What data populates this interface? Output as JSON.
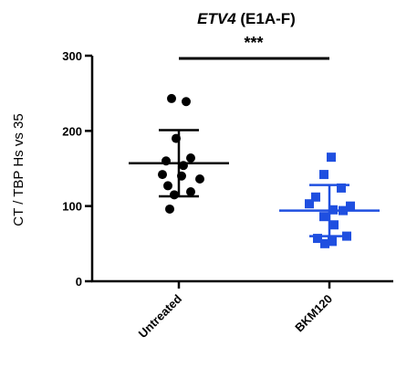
{
  "chart_data": {
    "type": "scatter",
    "title_gene": "ETV4",
    "title_suffix": " (E1A-F)",
    "xlabel": "",
    "ylabel": "CT / TBP Hs vs 35",
    "ylim": [
      0,
      300
    ],
    "yticks": [
      0,
      100,
      200,
      300
    ],
    "categories": [
      "Untreated",
      "BKM120"
    ],
    "series": [
      {
        "category": "Untreated",
        "color": "#000000",
        "marker": "circle",
        "values": [
          243,
          239,
          190,
          164,
          160,
          154,
          142,
          140,
          136,
          127,
          119,
          115,
          96
        ],
        "mean": 157,
        "sd": 44
      },
      {
        "category": "BKM120",
        "color": "#1f4fe0",
        "marker": "square",
        "values": [
          165,
          142,
          124,
          112,
          103,
          100,
          95,
          94,
          86,
          75,
          60,
          57,
          53,
          50
        ],
        "mean": 94,
        "sd": 34
      }
    ],
    "significance": "***",
    "grid": false
  }
}
